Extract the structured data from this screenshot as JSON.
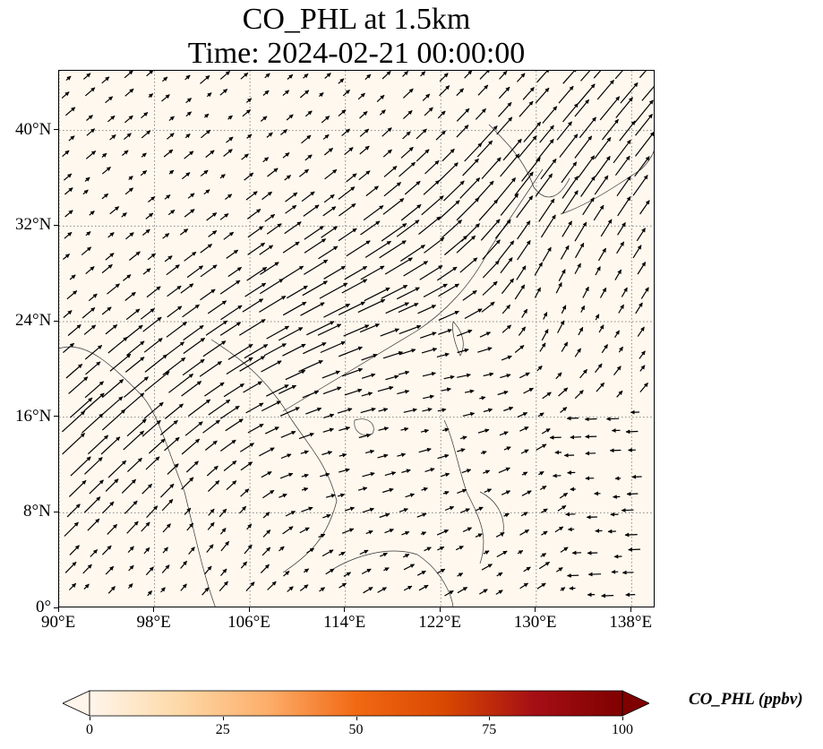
{
  "title": {
    "line1": "CO_PHL at 1.5km",
    "line2": "Time: 2024-02-21 00:00:00"
  },
  "axes": {
    "lon_min": 90,
    "lon_max": 140,
    "lat_min": 0,
    "lat_max": 45,
    "x_ticks": [
      {
        "value": 90,
        "label": "90°E"
      },
      {
        "value": 98,
        "label": "98°E"
      },
      {
        "value": 106,
        "label": "106°E"
      },
      {
        "value": 114,
        "label": "114°E"
      },
      {
        "value": 122,
        "label": "122°E"
      },
      {
        "value": 130,
        "label": "130°E"
      },
      {
        "value": 138,
        "label": "138°E"
      }
    ],
    "y_ticks": [
      {
        "value": 0,
        "label": "0°"
      },
      {
        "value": 8,
        "label": "8°N"
      },
      {
        "value": 16,
        "label": "16°N"
      },
      {
        "value": 24,
        "label": "24°N"
      },
      {
        "value": 32,
        "label": "32°N"
      },
      {
        "value": 40,
        "label": "40°N"
      }
    ],
    "gridlines": "dotted"
  },
  "colorbar": {
    "title": "CO_PHL (ppbv)",
    "min": 0,
    "max": 100,
    "ticks": [
      {
        "value": 0,
        "label": "0"
      },
      {
        "value": 25,
        "label": "25"
      },
      {
        "value": 50,
        "label": "50"
      },
      {
        "value": 75,
        "label": "75"
      },
      {
        "value": 100,
        "label": "100"
      }
    ],
    "colormap": [
      "#fff5eb",
      "#fdd9a8",
      "#fdae6b",
      "#f16913",
      "#d94801",
      "#a50f15",
      "#7f0000"
    ],
    "extend": "both"
  },
  "colors": {
    "background_field": "#fff8ee",
    "arrow": "#000000",
    "coastline": "#333333"
  }
}
